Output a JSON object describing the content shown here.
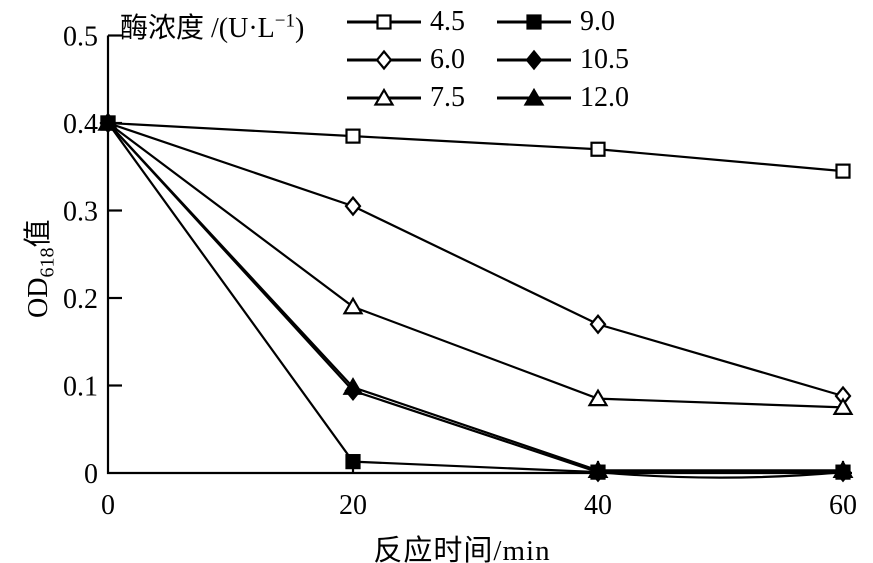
{
  "chart_data": {
    "type": "line",
    "title": "",
    "xlabel": "反应时间/min",
    "ylabel_parts": {
      "prefix": "OD",
      "sub": "618",
      "suffix": "值"
    },
    "legend": {
      "title_prefix": "酶浓度 /(U·L",
      "title_sup": "−1",
      "title_suffix": ")",
      "position": "top-inside",
      "columns": 2
    },
    "x": [
      0,
      20,
      40,
      60
    ],
    "x_tick_labels": [
      "0",
      "20",
      "40",
      "60"
    ],
    "y_ticks": [
      0,
      0.1,
      0.2,
      0.3,
      0.4,
      0.5
    ],
    "y_tick_labels": [
      "0",
      "0.1",
      "0.2",
      "0.3",
      "0.4",
      "0.5"
    ],
    "xlim": [
      0,
      60
    ],
    "ylim": [
      0,
      0.5
    ],
    "grid": false,
    "line_color": "#000000",
    "background_color": "#ffffff",
    "series": [
      {
        "label": "4.5",
        "marker": "square",
        "fill": "open",
        "values": [
          0.4,
          0.385,
          0.37,
          0.345
        ]
      },
      {
        "label": "6.0",
        "marker": "diamond",
        "fill": "open",
        "values": [
          0.4,
          0.305,
          0.17,
          0.088
        ]
      },
      {
        "label": "7.5",
        "marker": "triangle",
        "fill": "open",
        "values": [
          0.4,
          0.19,
          0.085,
          0.075
        ]
      },
      {
        "label": "9.0",
        "marker": "square",
        "fill": "solid",
        "values": [
          0.4,
          0.013,
          0.001,
          0.001
        ]
      },
      {
        "label": "10.5",
        "marker": "diamond",
        "fill": "solid",
        "values": [
          0.4,
          0.094,
          0.001,
          0.001
        ],
        "dip_below_axis_between": [
          40,
          60
        ]
      },
      {
        "label": "12.0",
        "marker": "triangle",
        "fill": "solid",
        "values": [
          0.4,
          0.098,
          0.003,
          0.003
        ]
      }
    ]
  }
}
